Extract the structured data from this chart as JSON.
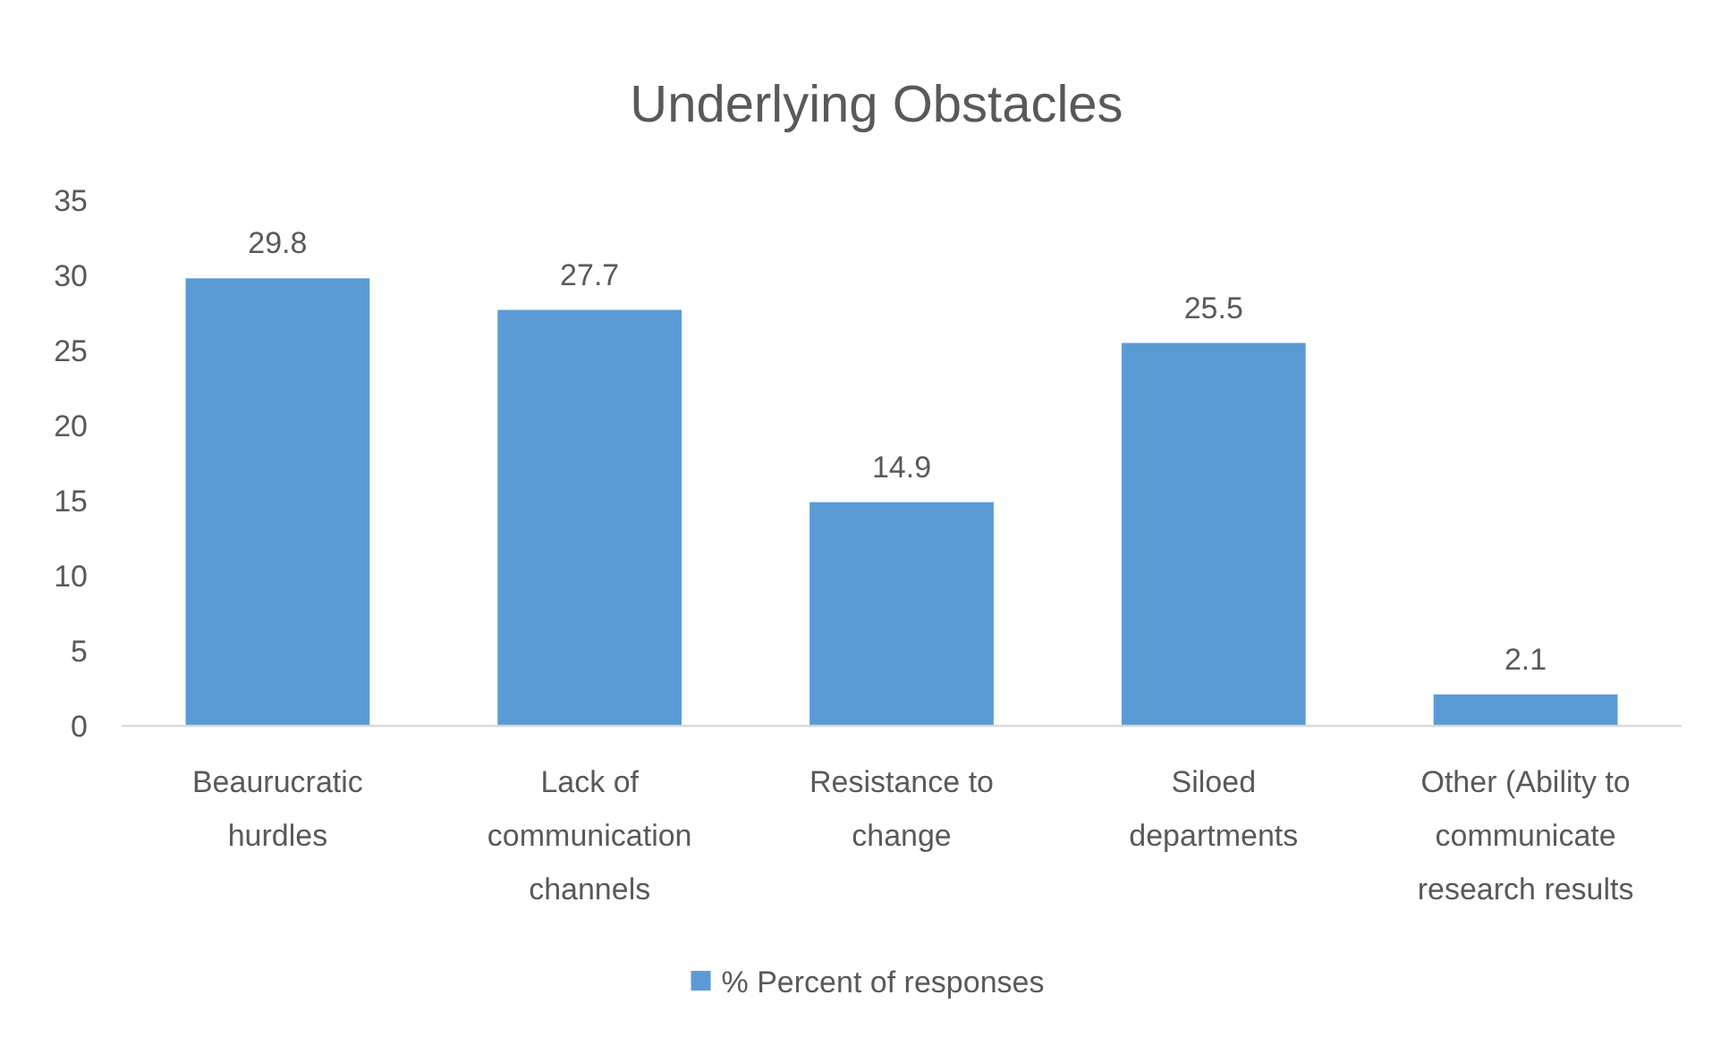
{
  "chart_data": {
    "type": "bar",
    "title": "Underlying Obstacles",
    "categories": [
      "Beaurucratic hurdles",
      "Lack of communication channels",
      "Resistance to change",
      "Siloed departments",
      "Other (Ability to communicate research results"
    ],
    "series": [
      {
        "name": "% Percent of responses",
        "color": "#5b9bd5",
        "values": [
          29.8,
          27.7,
          14.9,
          25.5,
          2.1
        ]
      }
    ],
    "ylim": [
      0,
      35
    ],
    "yticks": [
      0,
      5,
      10,
      15,
      20,
      25,
      30,
      35
    ],
    "data_labels": true,
    "legend": "bottom"
  }
}
